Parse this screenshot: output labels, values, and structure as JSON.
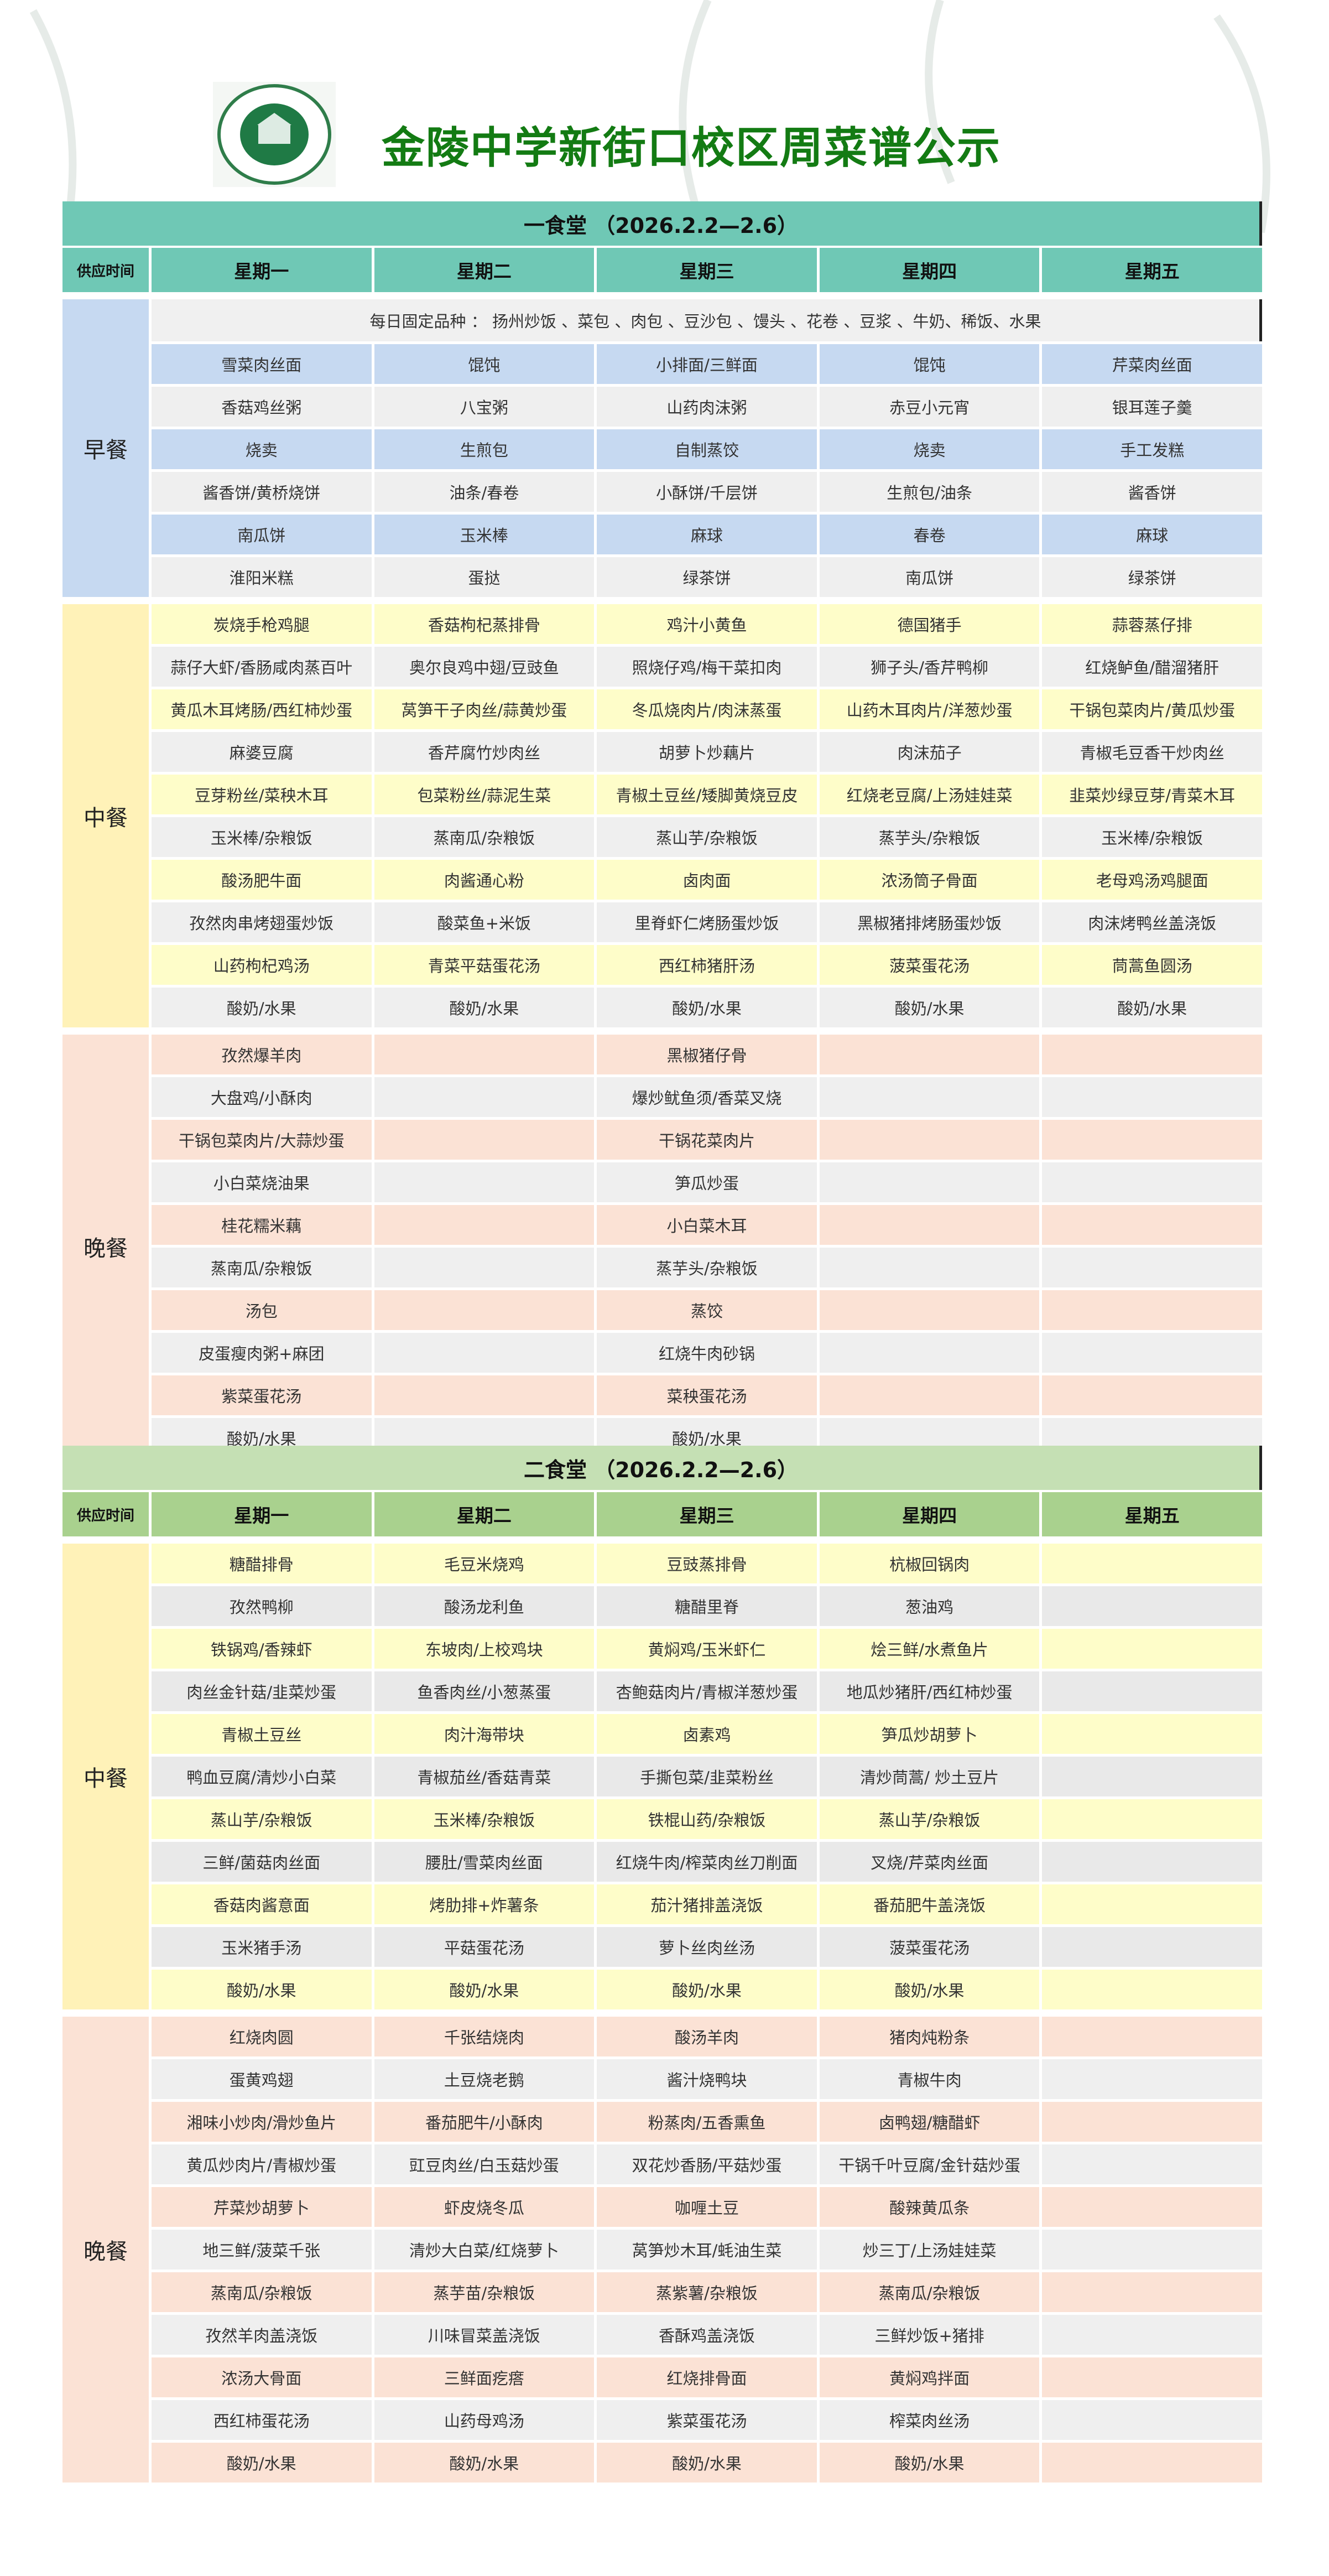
{
  "page_title": "金陵中学新街口校区周菜谱公示",
  "colors": {
    "title_green": "#137b13",
    "c1_header": "#6fc8b5",
    "c2_title": "#c5e0b4",
    "c2_header": "#a9d18e",
    "breakfast": "#c6d9f1",
    "lunch": "#fefdc9",
    "lunch_label": "#fff2b8",
    "dinner": "#fbe2d5",
    "grey": "#efefef"
  },
  "canteens": [
    {
      "title": "一食堂 （2026.2.2—2.6）",
      "time_label": "供应时间",
      "days": [
        "星期一",
        "星期二",
        "星期三",
        "星期四",
        "星期五"
      ],
      "sections": [
        {
          "meal": "早餐",
          "fixed": "每日固定品种 ：  扬州炒饭 、菜包 、肉包 、豆沙包 、馒头 、花卷 、豆浆 、牛奶、稀饭、水果",
          "rows": [
            [
              "雪菜肉丝面",
              "馄饨",
              "小排面/三鲜面",
              "馄饨",
              "芹菜肉丝面"
            ],
            [
              "香菇鸡丝粥",
              "八宝粥",
              "山药肉沫粥",
              "赤豆小元宵",
              "银耳莲子羹"
            ],
            [
              "烧卖",
              "生煎包",
              "自制蒸饺",
              "烧卖",
              "手工发糕"
            ],
            [
              "酱香饼/黄桥烧饼",
              "油条/春卷",
              "小酥饼/千层饼",
              "生煎包/油条",
              "酱香饼"
            ],
            [
              "南瓜饼",
              "玉米棒",
              "麻球",
              "春卷",
              "麻球"
            ],
            [
              "淮阳米糕",
              "蛋挞",
              "绿茶饼",
              "南瓜饼",
              "绿茶饼"
            ]
          ]
        },
        {
          "meal": "中餐",
          "rows": [
            [
              "炭烧手枪鸡腿",
              "香菇枸杞蒸排骨",
              "鸡汁小黄鱼",
              "德国猪手",
              "蒜蓉蒸仔排"
            ],
            [
              "蒜仔大虾/香肠咸肉蒸百叶",
              "奥尔良鸡中翅/豆豉鱼",
              "照烧仔鸡/梅干菜扣肉",
              "狮子头/香芹鸭柳",
              "红烧鲈鱼/醋溜猪肝"
            ],
            [
              "黄瓜木耳烤肠/西红柿炒蛋",
              "莴笋干子肉丝/蒜黄炒蛋",
              "冬瓜烧肉片/肉沫蒸蛋",
              "山药木耳肉片/洋葱炒蛋",
              "干锅包菜肉片/黄瓜炒蛋"
            ],
            [
              "麻婆豆腐",
              "香芹腐竹炒肉丝",
              "胡萝卜炒藕片",
              "肉沫茄子",
              "青椒毛豆香干炒肉丝"
            ],
            [
              "豆芽粉丝/菜秧木耳",
              "包菜粉丝/蒜泥生菜",
              "青椒土豆丝/矮脚黄烧豆皮",
              "红烧老豆腐/上汤娃娃菜",
              "韭菜炒绿豆芽/青菜木耳"
            ],
            [
              "玉米棒/杂粮饭",
              "蒸南瓜/杂粮饭",
              "蒸山芋/杂粮饭",
              "蒸芋头/杂粮饭",
              "玉米棒/杂粮饭"
            ],
            [
              "酸汤肥牛面",
              "肉酱通心粉",
              "卤肉面",
              "浓汤筒子骨面",
              "老母鸡汤鸡腿面"
            ],
            [
              "孜然肉串烤翅蛋炒饭",
              "酸菜鱼+米饭",
              "里脊虾仁烤肠蛋炒饭",
              "黑椒猪排烤肠蛋炒饭",
              "肉沫烤鸭丝盖浇饭"
            ],
            [
              "山药枸杞鸡汤",
              "青菜平菇蛋花汤",
              "西红柿猪肝汤",
              "菠菜蛋花汤",
              "茼蒿鱼圆汤"
            ],
            [
              "酸奶/水果",
              "酸奶/水果",
              "酸奶/水果",
              "酸奶/水果",
              "酸奶/水果"
            ]
          ]
        },
        {
          "meal": "晚餐",
          "rows": [
            [
              "孜然爆羊肉",
              "",
              "黑椒猪仔骨",
              "",
              ""
            ],
            [
              "大盘鸡/小酥肉",
              "",
              "爆炒鱿鱼须/香菜叉烧",
              "",
              ""
            ],
            [
              "干锅包菜肉片/大蒜炒蛋",
              "",
              "干锅花菜肉片",
              "",
              ""
            ],
            [
              "小白菜烧油果",
              "",
              "笋瓜炒蛋",
              "",
              ""
            ],
            [
              "桂花糯米藕",
              "",
              "小白菜木耳",
              "",
              ""
            ],
            [
              "蒸南瓜/杂粮饭",
              "",
              "蒸芋头/杂粮饭",
              "",
              ""
            ],
            [
              "汤包",
              "",
              "蒸饺",
              "",
              ""
            ],
            [
              "皮蛋瘦肉粥+麻团",
              "",
              "红烧牛肉砂锅",
              "",
              ""
            ],
            [
              "紫菜蛋花汤",
              "",
              "菜秧蛋花汤",
              "",
              ""
            ],
            [
              "酸奶/水果",
              "",
              "酸奶/水果",
              "",
              ""
            ]
          ]
        }
      ]
    },
    {
      "title": "二食堂 （2026.2.2—2.6）",
      "time_label": "供应时间",
      "days": [
        "星期一",
        "星期二",
        "星期三",
        "星期四",
        "星期五"
      ],
      "sections": [
        {
          "meal": "中餐",
          "rows": [
            [
              "糖醋排骨",
              "毛豆米烧鸡",
              "豆豉蒸排骨",
              "杭椒回锅肉",
              ""
            ],
            [
              "孜然鸭柳",
              "酸汤龙利鱼",
              "糖醋里脊",
              "葱油鸡",
              ""
            ],
            [
              "铁锅鸡/香辣虾",
              "东坡肉/上校鸡块",
              "黄焖鸡/玉米虾仁",
              "烩三鲜/水煮鱼片",
              ""
            ],
            [
              "肉丝金针菇/韭菜炒蛋",
              "鱼香肉丝/小葱蒸蛋",
              "杏鲍菇肉片/青椒洋葱炒蛋",
              "地瓜炒猪肝/西红柿炒蛋",
              ""
            ],
            [
              "青椒土豆丝",
              "肉汁海带块",
              "卤素鸡",
              "笋瓜炒胡萝卜",
              ""
            ],
            [
              "鸭血豆腐/清炒小白菜",
              "青椒茄丝/香菇青菜",
              "手撕包菜/韭菜粉丝",
              "清炒茼蒿/ 炒土豆片",
              ""
            ],
            [
              "蒸山芋/杂粮饭",
              "玉米棒/杂粮饭",
              "铁棍山药/杂粮饭",
              "蒸山芋/杂粮饭",
              ""
            ],
            [
              "三鲜/菌菇肉丝面",
              "腰肚/雪菜肉丝面",
              "红烧牛肉/榨菜肉丝刀削面",
              "叉烧/芹菜肉丝面",
              ""
            ],
            [
              "香菇肉酱意面",
              "烤肋排+炸薯条",
              "茄汁猪排盖浇饭",
              "番茄肥牛盖浇饭",
              ""
            ],
            [
              "玉米猪手汤",
              "平菇蛋花汤",
              "萝卜丝肉丝汤",
              "菠菜蛋花汤",
              ""
            ],
            [
              "酸奶/水果",
              "酸奶/水果",
              "酸奶/水果",
              "酸奶/水果",
              ""
            ]
          ]
        },
        {
          "meal": "晚餐",
          "rows": [
            [
              "红烧肉圆",
              "千张结烧肉",
              "酸汤羊肉",
              "猪肉炖粉条",
              ""
            ],
            [
              "蛋黄鸡翅",
              "土豆烧老鹅",
              "酱汁烧鸭块",
              "青椒牛肉",
              ""
            ],
            [
              "湘味小炒肉/滑炒鱼片",
              "番茄肥牛/小酥肉",
              "粉蒸肉/五香熏鱼",
              "卤鸭翅/糖醋虾",
              ""
            ],
            [
              "黄瓜炒肉片/青椒炒蛋",
              "豇豆肉丝/白玉菇炒蛋",
              "双花炒香肠/平菇炒蛋",
              "干锅千叶豆腐/金针菇炒蛋",
              ""
            ],
            [
              "芹菜炒胡萝卜",
              "虾皮烧冬瓜",
              "咖喱土豆",
              "酸辣黄瓜条",
              ""
            ],
            [
              "地三鲜/菠菜千张",
              "清炒大白菜/红烧萝卜",
              "莴笋炒木耳/蚝油生菜",
              "炒三丁/上汤娃娃菜",
              ""
            ],
            [
              "蒸南瓜/杂粮饭",
              "蒸芋苗/杂粮饭",
              "蒸紫薯/杂粮饭",
              "蒸南瓜/杂粮饭",
              ""
            ],
            [
              "孜然羊肉盖浇饭",
              "川味冒菜盖浇饭",
              "香酥鸡盖浇饭",
              "三鲜炒饭+猪排",
              ""
            ],
            [
              "浓汤大骨面",
              "三鲜面疙瘩",
              "红烧排骨面",
              "黄焖鸡拌面",
              ""
            ],
            [
              "西红柿蛋花汤",
              "山药母鸡汤",
              "紫菜蛋花汤",
              "榨菜肉丝汤",
              ""
            ],
            [
              "酸奶/水果",
              "酸奶/水果",
              "酸奶/水果",
              "酸奶/水果",
              ""
            ]
          ]
        }
      ]
    }
  ]
}
